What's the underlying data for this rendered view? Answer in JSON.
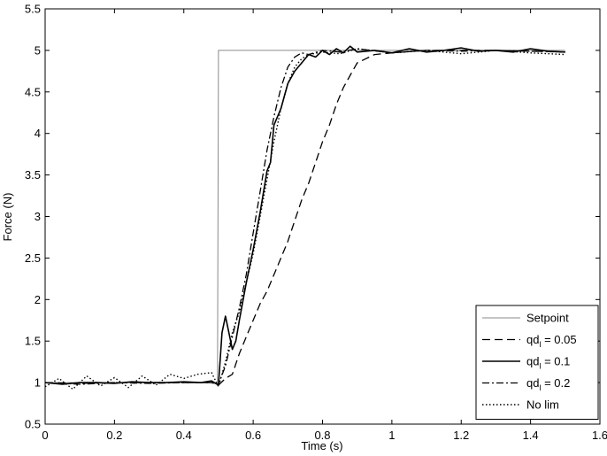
{
  "chart_data": {
    "type": "line",
    "title": "",
    "xlabel": "Time (s)",
    "ylabel": "Force (N)",
    "xlim": [
      0,
      1.6
    ],
    "ylim": [
      0.5,
      5.5
    ],
    "xticks": [
      0,
      0.2,
      0.4,
      0.6,
      0.8,
      1,
      1.2,
      1.4,
      1.6
    ],
    "yticks": [
      0.5,
      1,
      1.5,
      2,
      2.5,
      3,
      3.5,
      4,
      4.5,
      5,
      5.5
    ],
    "xtick_labels": [
      "0",
      "0.2",
      "0.4",
      "0.6",
      "0.8",
      "1",
      "1.2",
      "1.4",
      "1.6"
    ],
    "ytick_labels": [
      "0.5",
      "1",
      "1.5",
      "2",
      "2.5",
      "3",
      "3.5",
      "4",
      "4.5",
      "5",
      "5.5"
    ],
    "grid": false,
    "legend_position": "bottom-right",
    "series": [
      {
        "name": "Setpoint",
        "style": "solid-thin",
        "color": "#8a8a8a",
        "x": [
          0,
          0.497,
          0.5,
          1.5
        ],
        "y": [
          1.0,
          1.0,
          5.0,
          5.0
        ]
      },
      {
        "name": "qd_l = 0.05",
        "legend_main": "qd",
        "legend_sub": "l",
        "legend_rest": " = 0.05",
        "style": "dashed",
        "color": "#000000",
        "x": [
          0,
          0.1,
          0.2,
          0.3,
          0.4,
          0.48,
          0.5,
          0.52,
          0.54,
          0.56,
          0.58,
          0.6,
          0.62,
          0.64,
          0.66,
          0.68,
          0.7,
          0.72,
          0.74,
          0.76,
          0.78,
          0.8,
          0.82,
          0.84,
          0.86,
          0.88,
          0.9,
          0.95,
          1.0,
          1.1,
          1.2,
          1.3,
          1.4,
          1.5
        ],
        "y": [
          1.0,
          0.99,
          1.0,
          1.0,
          1.0,
          1.0,
          0.97,
          1.05,
          1.1,
          1.35,
          1.55,
          1.75,
          1.95,
          2.1,
          2.3,
          2.5,
          2.7,
          2.95,
          3.2,
          3.4,
          3.65,
          3.9,
          4.1,
          4.35,
          4.55,
          4.7,
          4.85,
          4.95,
          4.97,
          5.0,
          5.0,
          5.0,
          4.99,
          4.98
        ]
      },
      {
        "name": "qd_l = 0.1",
        "legend_main": "qd",
        "legend_sub": "l",
        "legend_rest": " = 0.1",
        "style": "solid",
        "color": "#000000",
        "x": [
          0,
          0.05,
          0.1,
          0.15,
          0.2,
          0.25,
          0.3,
          0.35,
          0.4,
          0.45,
          0.48,
          0.5,
          0.51,
          0.52,
          0.53,
          0.54,
          0.55,
          0.56,
          0.58,
          0.6,
          0.62,
          0.64,
          0.65,
          0.66,
          0.68,
          0.7,
          0.72,
          0.74,
          0.76,
          0.78,
          0.8,
          0.82,
          0.84,
          0.86,
          0.88,
          0.9,
          0.95,
          1.0,
          1.05,
          1.1,
          1.15,
          1.2,
          1.25,
          1.3,
          1.35,
          1.4,
          1.45,
          1.5
        ],
        "y": [
          1.0,
          0.98,
          1.0,
          1.0,
          0.99,
          1.01,
          1.0,
          1.0,
          1.01,
          1.0,
          1.02,
          0.97,
          1.6,
          1.8,
          1.6,
          1.4,
          1.5,
          1.75,
          2.2,
          2.6,
          3.05,
          3.55,
          3.65,
          4.1,
          4.3,
          4.6,
          4.75,
          4.85,
          4.95,
          4.92,
          5.0,
          4.95,
          5.02,
          4.97,
          5.05,
          4.98,
          5.0,
          4.97,
          5.02,
          4.98,
          5.0,
          5.03,
          4.99,
          5.0,
          4.98,
          5.02,
          4.99,
          4.98
        ]
      },
      {
        "name": "qd_l = 0.2",
        "legend_main": "qd",
        "legend_sub": "l",
        "legend_rest": " = 0.2",
        "style": "dash-dot",
        "color": "#000000",
        "x": [
          0,
          0.1,
          0.2,
          0.3,
          0.4,
          0.48,
          0.5,
          0.52,
          0.54,
          0.56,
          0.58,
          0.6,
          0.62,
          0.64,
          0.66,
          0.68,
          0.7,
          0.72,
          0.74,
          0.76,
          0.8,
          0.85,
          0.9,
          1.0,
          1.1,
          1.2,
          1.3,
          1.4,
          1.5
        ],
        "y": [
          1.0,
          0.98,
          1.0,
          0.99,
          1.0,
          1.0,
          0.98,
          1.2,
          1.55,
          1.9,
          2.3,
          2.8,
          3.3,
          3.8,
          4.2,
          4.55,
          4.8,
          4.92,
          4.97,
          4.95,
          5.0,
          4.98,
          5.02,
          4.97,
          5.0,
          4.99,
          5.0,
          4.99,
          4.98
        ]
      },
      {
        "name": "No lim",
        "style": "dotted",
        "color": "#000000",
        "x": [
          0,
          0.04,
          0.08,
          0.12,
          0.16,
          0.2,
          0.24,
          0.28,
          0.32,
          0.36,
          0.4,
          0.44,
          0.48,
          0.5,
          0.52,
          0.54,
          0.56,
          0.58,
          0.6,
          0.62,
          0.64,
          0.66,
          0.68,
          0.7,
          0.72,
          0.74,
          0.76,
          0.8,
          0.85,
          0.9,
          1.0,
          1.1,
          1.2,
          1.3,
          1.4,
          1.5
        ],
        "y": [
          0.95,
          1.05,
          0.92,
          1.08,
          0.96,
          1.06,
          0.94,
          1.08,
          0.97,
          1.1,
          1.05,
          1.1,
          1.12,
          0.95,
          1.25,
          1.6,
          1.85,
          2.2,
          2.55,
          3.0,
          3.45,
          3.9,
          4.3,
          4.6,
          4.8,
          4.9,
          4.95,
          4.98,
          4.96,
          5.02,
          4.97,
          5.0,
          4.96,
          5.0,
          4.97,
          4.95
        ]
      }
    ]
  }
}
